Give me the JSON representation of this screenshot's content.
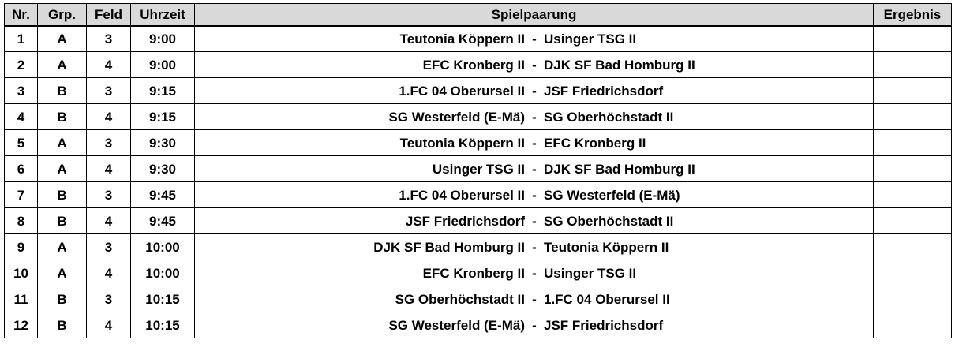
{
  "headers": {
    "nr": "Nr.",
    "grp": "Grp.",
    "feld": "Feld",
    "uhrzeit": "Uhrzeit",
    "spielpaarung": "Spielpaarung",
    "ergebnis": "Ergebnis"
  },
  "separator": "-",
  "colors": {
    "header_bg": "#d9d9d9",
    "border": "#000000",
    "text": "#000000"
  },
  "matches": [
    {
      "nr": "1",
      "grp": "A",
      "feld": "3",
      "zeit": "9:00",
      "home": "Teutonia Köppern II",
      "away": "Usinger TSG II",
      "ergebnis": ""
    },
    {
      "nr": "2",
      "grp": "A",
      "feld": "4",
      "zeit": "9:00",
      "home": "EFC Kronberg II",
      "away": "DJK SF Bad Homburg II",
      "ergebnis": ""
    },
    {
      "nr": "3",
      "grp": "B",
      "feld": "3",
      "zeit": "9:15",
      "home": "1.FC 04 Oberursel II",
      "away": "JSF Friedrichsdorf",
      "ergebnis": ""
    },
    {
      "nr": "4",
      "grp": "B",
      "feld": "4",
      "zeit": "9:15",
      "home": "SG Westerfeld (E-Mä)",
      "away": "SG Oberhöchstadt II",
      "ergebnis": ""
    },
    {
      "nr": "5",
      "grp": "A",
      "feld": "3",
      "zeit": "9:30",
      "home": "Teutonia Köppern II",
      "away": "EFC Kronberg II",
      "ergebnis": ""
    },
    {
      "nr": "6",
      "grp": "A",
      "feld": "4",
      "zeit": "9:30",
      "home": "Usinger TSG II",
      "away": "DJK SF Bad Homburg II",
      "ergebnis": ""
    },
    {
      "nr": "7",
      "grp": "B",
      "feld": "3",
      "zeit": "9:45",
      "home": "1.FC 04 Oberursel II",
      "away": "SG Westerfeld (E-Mä)",
      "ergebnis": ""
    },
    {
      "nr": "8",
      "grp": "B",
      "feld": "4",
      "zeit": "9:45",
      "home": "JSF Friedrichsdorf",
      "away": "SG Oberhöchstadt II",
      "ergebnis": ""
    },
    {
      "nr": "9",
      "grp": "A",
      "feld": "3",
      "zeit": "10:00",
      "home": "DJK SF Bad Homburg II",
      "away": "Teutonia Köppern II",
      "ergebnis": ""
    },
    {
      "nr": "10",
      "grp": "A",
      "feld": "4",
      "zeit": "10:00",
      "home": "EFC Kronberg II",
      "away": "Usinger TSG II",
      "ergebnis": ""
    },
    {
      "nr": "11",
      "grp": "B",
      "feld": "3",
      "zeit": "10:15",
      "home": "SG Oberhöchstadt II",
      "away": "1.FC 04 Oberursel II",
      "ergebnis": ""
    },
    {
      "nr": "12",
      "grp": "B",
      "feld": "4",
      "zeit": "10:15",
      "home": "SG Westerfeld (E-Mä)",
      "away": "JSF Friedrichsdorf",
      "ergebnis": ""
    }
  ]
}
